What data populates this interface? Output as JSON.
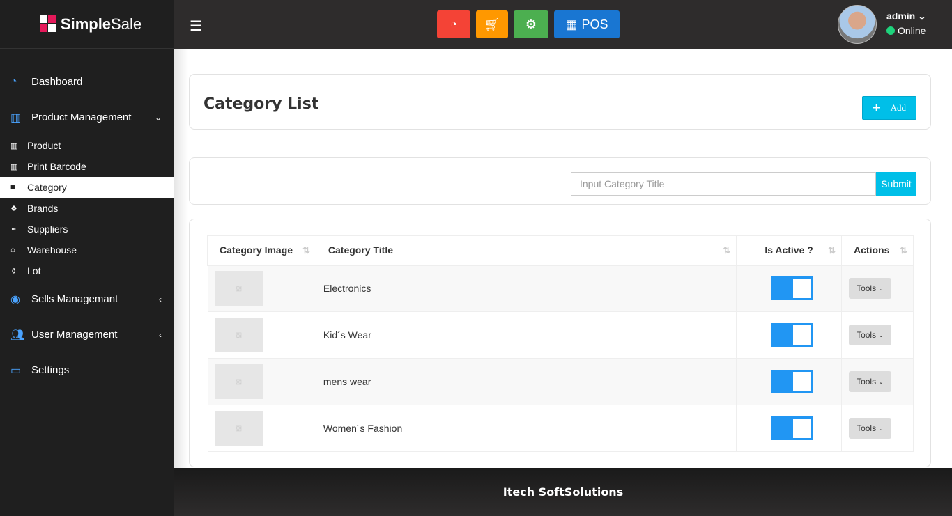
{
  "brand": {
    "name_bold": "Simple",
    "name_light": "Sale"
  },
  "sidebar": {
    "items": [
      {
        "label": "Dashboard",
        "icon": "dashboard-icon",
        "type": "top"
      },
      {
        "label": "Product Management",
        "icon": "barcode-icon",
        "type": "top",
        "chevron": "⌄"
      },
      {
        "label": "Product",
        "icon": "barcode-icon",
        "type": "sub"
      },
      {
        "label": "Print Barcode",
        "icon": "barcode-icon",
        "type": "sub"
      },
      {
        "label": "Category",
        "icon": "folder-icon",
        "type": "sub",
        "active": true
      },
      {
        "label": "Brands",
        "icon": "cubes-icon",
        "type": "sub"
      },
      {
        "label": "Suppliers",
        "icon": "handshake-icon",
        "type": "sub"
      },
      {
        "label": "Warehouse",
        "icon": "home-icon",
        "type": "sub"
      },
      {
        "label": "Lot",
        "icon": "boxes-icon",
        "type": "sub"
      },
      {
        "label": "Sells Managemant",
        "icon": "circle-icon",
        "type": "top",
        "chevron": "‹"
      },
      {
        "label": "User Management",
        "icon": "users-icon",
        "type": "top",
        "chevron": "‹"
      },
      {
        "label": "Settings",
        "icon": "laptop-icon",
        "type": "top"
      }
    ]
  },
  "header": {
    "quick_buttons": [
      {
        "icon": "dashboard-icon",
        "color": "#f44336"
      },
      {
        "icon": "cart-icon",
        "color": "#ff9800"
      },
      {
        "icon": "gears-icon",
        "color": "#4caf50"
      },
      {
        "icon": "grid-icon",
        "label": "POS",
        "color": "#1976d2"
      }
    ],
    "user": {
      "name": "admin",
      "status": "Online"
    }
  },
  "page": {
    "title": "Category List",
    "add_label": "Add",
    "input_placeholder": "Input Category Title",
    "submit_label": "Submit"
  },
  "table": {
    "columns": [
      "Category Image",
      "Category Title",
      "Is Active ?",
      "Actions"
    ],
    "rows": [
      {
        "title": "Electronics",
        "active": true,
        "action": "Tools"
      },
      {
        "title": "Kid´s Wear",
        "active": true,
        "action": "Tools"
      },
      {
        "title": "mens wear",
        "active": true,
        "action": "Tools"
      },
      {
        "title": "Women´s Fashion",
        "active": true,
        "action": "Tools"
      }
    ]
  },
  "footer": {
    "text": "Itech SoftSolutions"
  }
}
